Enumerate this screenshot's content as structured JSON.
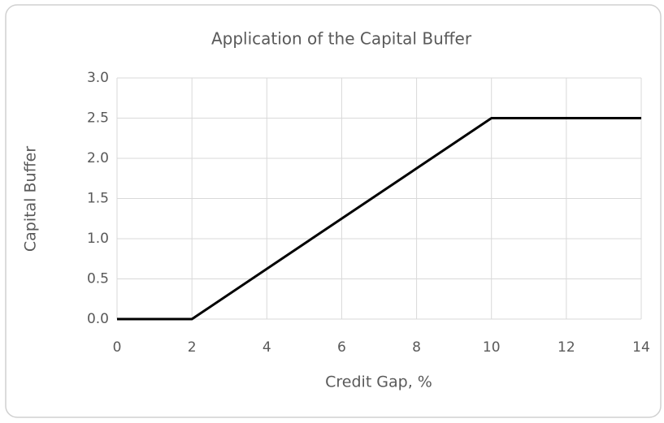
{
  "chart_data": {
    "type": "line",
    "title": "Application of the Capital Buffer",
    "x_label": "Credit Gap, %",
    "y_label": "Capital Buffer",
    "x": [
      0,
      2,
      10,
      14
    ],
    "series": [
      {
        "name": "Capital Buffer",
        "color": "#000000",
        "values": [
          0,
          0,
          2.5,
          2.5
        ]
      }
    ],
    "xlim": [
      0,
      14
    ],
    "xticks": [
      0,
      2,
      4,
      6,
      8,
      10,
      12,
      14
    ],
    "ylim": [
      0,
      3
    ],
    "yticks": [
      {
        "value": 0,
        "label": "0.0"
      },
      0.5,
      {
        "value": 1,
        "label": "1.0"
      },
      1.5,
      {
        "value": 2,
        "label": "2.0"
      },
      2.5,
      {
        "value": 3,
        "label": "3.0"
      }
    ],
    "grid": true
  }
}
